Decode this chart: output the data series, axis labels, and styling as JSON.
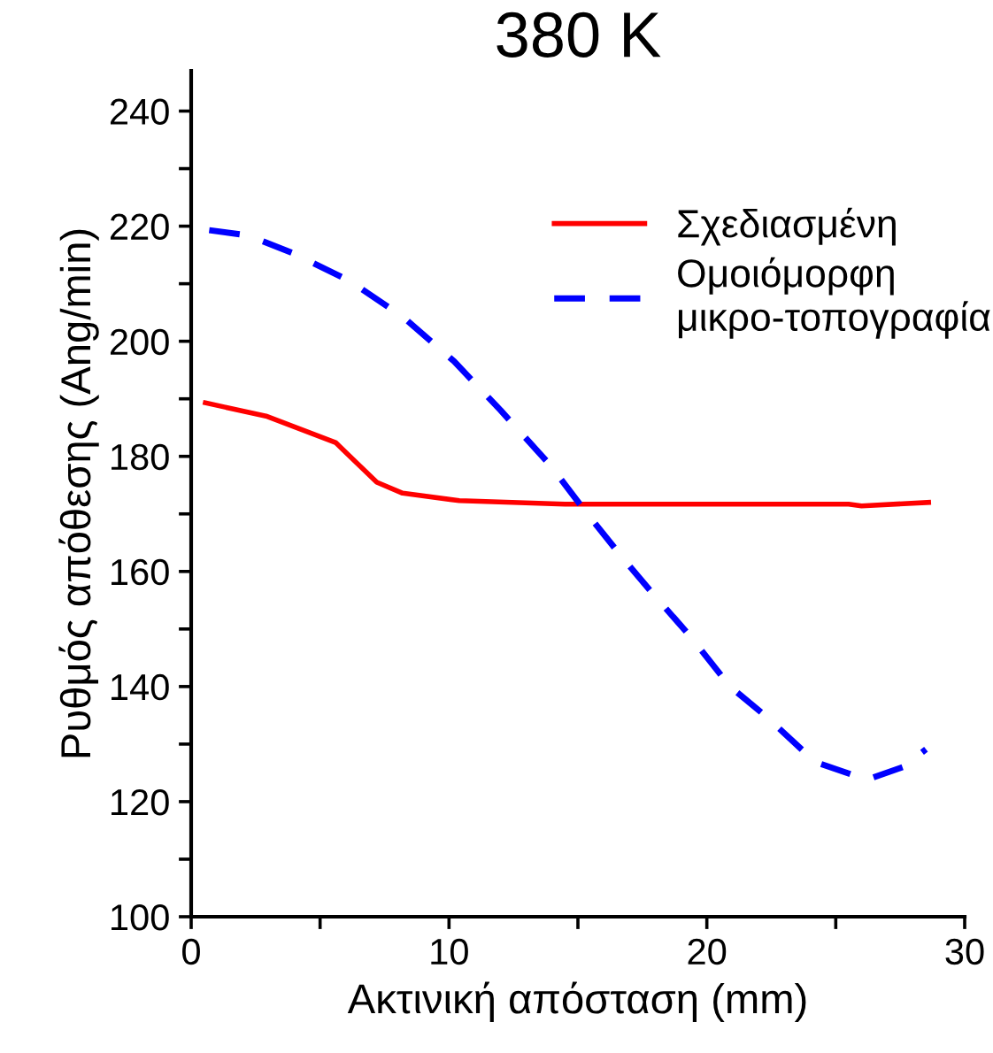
{
  "chart_data": {
    "type": "line",
    "title": "380 K",
    "xlabel": "Ακτινική απόσταση (mm)",
    "ylabel": "Ρυθμός απόθεσης (Ang/min)",
    "xlim": [
      0,
      30
    ],
    "ylim": [
      100,
      247
    ],
    "xticks": [
      0,
      {
        "value": 5,
        "label": null
      },
      10,
      {
        "value": 15,
        "label": null
      },
      20,
      {
        "value": 25,
        "label": null
      },
      30
    ],
    "yticks": [
      100,
      {
        "value": 110,
        "label": null
      },
      120,
      {
        "value": 130,
        "label": null
      },
      140,
      {
        "value": 150,
        "label": null
      },
      160,
      {
        "value": 170,
        "label": null
      },
      180,
      {
        "value": 190,
        "label": null
      },
      200,
      {
        "value": 210,
        "label": null
      },
      220,
      {
        "value": 230,
        "label": null
      },
      240
    ],
    "legend": "top right",
    "grid": false,
    "series": [
      {
        "name": "Σχεδιασμένη",
        "color": "#ff0000",
        "line_style": "solid",
        "x": [
          0.55,
          2.9,
          5.6,
          7.2,
          8.2,
          10.4,
          14.5,
          20,
          25.5,
          26,
          28.6
        ],
        "values": [
          189.3,
          187,
          182.4,
          175.5,
          173.6,
          172.3,
          171.7,
          171.7,
          171.7,
          171.4,
          172
        ]
      },
      {
        "name": "Ομοιόμορφη\nμικρο-τοπογραφία",
        "color": "#0000ff",
        "line_style": "dashed",
        "x": [
          0.7,
          2.2,
          4.0,
          6.1,
          8.2,
          10.2,
          12.0,
          13.9,
          15.4,
          16.8,
          17.8,
          19.4,
          20.9,
          22.3,
          24.2,
          26.2,
          27.6,
          28.5
        ],
        "values": [
          219.3,
          218.4,
          215.2,
          210.6,
          204.3,
          196.5,
          188,
          178.6,
          169.8,
          162,
          156.7,
          148.5,
          140,
          134.8,
          126.9,
          123.8,
          126,
          129.1
        ]
      }
    ]
  }
}
